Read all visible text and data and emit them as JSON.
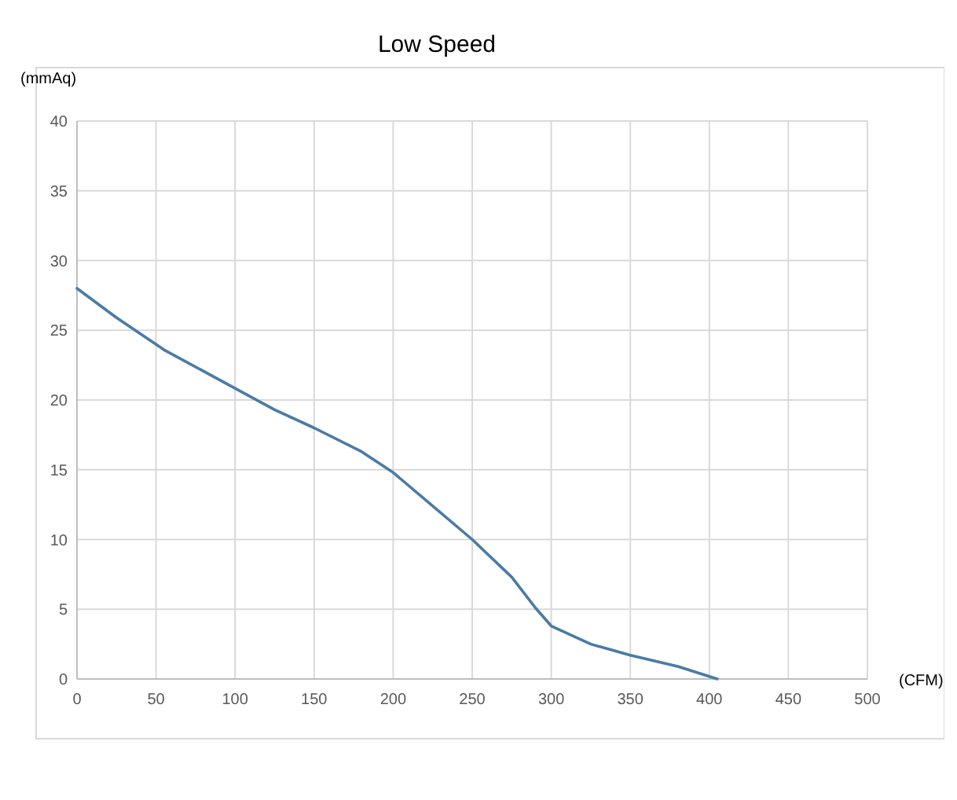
{
  "chart_data": {
    "type": "line",
    "title": "Low Speed",
    "xlabel": "(CFM)",
    "ylabel": "(mmAq)",
    "x": [
      0,
      25,
      55,
      125,
      150,
      180,
      200,
      225,
      250,
      275,
      290,
      300,
      325,
      350,
      380,
      405
    ],
    "series": [
      {
        "color": "#4a7ba7",
        "values": [
          28,
          25.9,
          23.6,
          19.3,
          18,
          16.3,
          14.8,
          12.4,
          10,
          7.3,
          5.1,
          3.8,
          2.5,
          1.7,
          0.9,
          0
        ]
      }
    ],
    "xlim": [
      0,
      500
    ],
    "xticks": [
      0,
      50,
      100,
      150,
      200,
      250,
      300,
      350,
      400,
      450,
      500
    ],
    "ylim": [
      0,
      40
    ],
    "yticks": [
      0,
      5,
      10,
      15,
      20,
      25,
      30,
      35,
      40
    ],
    "grid": true,
    "marker": "none",
    "line_style": "solid"
  }
}
